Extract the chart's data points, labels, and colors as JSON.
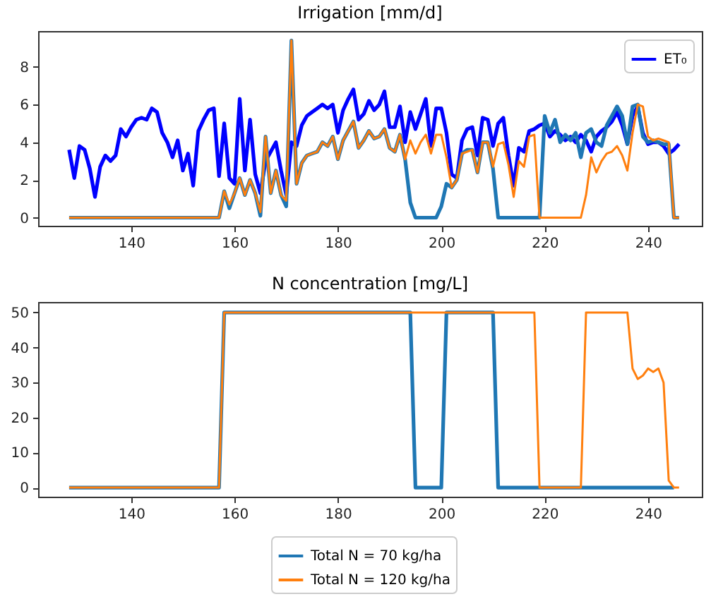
{
  "chart_data": [
    {
      "type": "line",
      "title": "Irrigation [mm/d]",
      "xlim": [
        122,
        250.4
      ],
      "xticks": [
        140,
        160,
        180,
        200,
        220,
        240
      ],
      "ylim": [
        -0.43,
        9.9
      ],
      "yticks": [
        0,
        2,
        4,
        6,
        8
      ],
      "legend": "top right",
      "line_style": "solid",
      "x": [
        128,
        129,
        130,
        131,
        132,
        133,
        134,
        135,
        136,
        137,
        138,
        139,
        140,
        141,
        142,
        143,
        144,
        145,
        146,
        147,
        148,
        149,
        150,
        151,
        152,
        153,
        154,
        155,
        156,
        157,
        158,
        159,
        160,
        161,
        162,
        163,
        164,
        165,
        166,
        167,
        168,
        169,
        170,
        171,
        172,
        173,
        174,
        175,
        176,
        177,
        178,
        179,
        180,
        181,
        182,
        183,
        184,
        185,
        186,
        187,
        188,
        189,
        190,
        191,
        192,
        193,
        194,
        195,
        196,
        197,
        198,
        199,
        200,
        201,
        202,
        203,
        204,
        205,
        206,
        207,
        208,
        209,
        210,
        211,
        212,
        213,
        214,
        215,
        216,
        217,
        218,
        219,
        220,
        221,
        222,
        223,
        224,
        225,
        226,
        227,
        228,
        229,
        230,
        231,
        232,
        233,
        234,
        235,
        236,
        237,
        238,
        239,
        240,
        241,
        242,
        243,
        244,
        245,
        246
      ],
      "series": [
        {
          "name": "ET₀",
          "color": "#0000ff",
          "values": [
            3.6,
            2.1,
            3.8,
            3.6,
            2.6,
            1.1,
            2.7,
            3.3,
            3.0,
            3.3,
            4.7,
            4.3,
            4.8,
            5.2,
            5.3,
            5.2,
            5.8,
            5.6,
            4.5,
            4.0,
            3.2,
            4.1,
            2.5,
            3.4,
            1.7,
            4.6,
            5.2,
            5.7,
            5.8,
            2.2,
            5.0,
            2.1,
            1.8,
            6.3,
            2.5,
            5.2,
            2.3,
            1.3,
            3.0,
            3.5,
            4.0,
            2.5,
            1.2,
            4.0,
            3.8,
            4.9,
            5.4,
            5.6,
            5.8,
            6.0,
            5.8,
            6.0,
            4.5,
            5.7,
            6.3,
            6.8,
            5.2,
            5.5,
            6.2,
            5.7,
            6.0,
            6.7,
            4.8,
            4.8,
            5.9,
            4.0,
            5.6,
            4.7,
            5.5,
            6.3,
            3.8,
            5.8,
            5.8,
            4.5,
            2.3,
            2.1,
            4.1,
            4.7,
            4.8,
            3.3,
            5.3,
            5.2,
            3.8,
            5.0,
            5.3,
            3.3,
            1.7,
            3.7,
            3.5,
            4.6,
            4.7,
            4.9,
            5.0,
            4.3,
            4.6,
            4.4,
            4.1,
            4.3,
            4.0,
            4.4,
            4.1,
            3.5,
            4.3,
            4.6,
            4.8,
            5.1,
            5.6,
            4.9,
            3.9,
            5.4,
            5.9,
            4.5,
            3.9,
            4.0,
            4.0,
            3.8,
            3.4,
            3.6,
            3.9
          ]
        },
        {
          "color": "#1f77b4",
          "values": [
            0,
            0,
            0,
            0,
            0,
            0,
            0,
            0,
            0,
            0,
            0,
            0,
            0,
            0,
            0,
            0,
            0,
            0,
            0,
            0,
            0,
            0,
            0,
            0,
            0,
            0,
            0,
            0,
            0,
            0,
            1.4,
            0.5,
            1.3,
            2.1,
            1.2,
            2.0,
            1.3,
            0.1,
            4.3,
            1.3,
            2.5,
            1.2,
            0.6,
            9.4,
            1.8,
            2.9,
            3.3,
            3.4,
            3.5,
            4.0,
            3.8,
            4.3,
            3.1,
            4.1,
            4.6,
            5.1,
            3.7,
            4.1,
            4.6,
            4.2,
            4.3,
            4.7,
            3.7,
            3.5,
            4.4,
            3.1,
            0.8,
            0,
            0,
            0,
            0,
            0,
            0.6,
            1.8,
            1.6,
            2.0,
            3.4,
            3.6,
            3.6,
            2.4,
            4.0,
            4.0,
            2.6,
            0,
            0,
            0,
            0,
            0,
            0,
            0,
            0,
            0,
            5.4,
            4.5,
            5.2,
            4.0,
            4.4,
            4.1,
            4.5,
            3.2,
            4.5,
            4.7,
            4.0,
            3.8,
            4.9,
            5.4,
            5.9,
            5.4,
            3.9,
            5.9,
            6.0,
            4.3,
            4.0,
            4.1,
            4.0,
            3.9,
            3.9,
            0,
            0
          ]
        },
        {
          "color": "#ff7f0e",
          "values": [
            0,
            0,
            0,
            0,
            0,
            0,
            0,
            0,
            0,
            0,
            0,
            0,
            0,
            0,
            0,
            0,
            0,
            0,
            0,
            0,
            0,
            0,
            0,
            0,
            0,
            0,
            0,
            0,
            0,
            0,
            1.4,
            0.7,
            1.3,
            2.1,
            1.2,
            2.0,
            1.3,
            0.3,
            4.3,
            1.3,
            2.5,
            1.2,
            0.9,
            9.4,
            1.8,
            2.9,
            3.3,
            3.4,
            3.5,
            4.0,
            3.8,
            4.3,
            3.1,
            4.1,
            4.6,
            5.1,
            3.7,
            4.1,
            4.6,
            4.2,
            4.3,
            4.7,
            3.7,
            3.5,
            4.4,
            3.1,
            4.1,
            3.4,
            4.0,
            4.4,
            3.4,
            4.4,
            4.4,
            3.2,
            1.6,
            2.0,
            3.4,
            3.5,
            3.6,
            2.4,
            4.0,
            4.0,
            2.7,
            3.9,
            4.0,
            2.8,
            1.1,
            3.0,
            2.7,
            4.3,
            4.4,
            0,
            0,
            0,
            0,
            0,
            0,
            0,
            0,
            0,
            1.2,
            3.2,
            2.4,
            3.0,
            3.4,
            3.5,
            3.8,
            3.3,
            2.5,
            4.5,
            6.0,
            5.9,
            4.3,
            4.1,
            4.2,
            4.1,
            4.0,
            0,
            0
          ]
        }
      ]
    },
    {
      "type": "line",
      "title": "N concentration [mg/L]",
      "xlim": [
        122,
        250.4
      ],
      "xticks": [
        140,
        160,
        180,
        200,
        220,
        240
      ],
      "ylim": [
        -2.6,
        53
      ],
      "yticks": [
        0,
        10,
        20,
        30,
        40,
        50
      ],
      "legend": "bottom",
      "line_style": "solid",
      "series": [
        {
          "name": "Total N = 70 kg/ha",
          "color": "#1f77b4",
          "x": [
            128,
            157,
            158,
            194,
            195,
            200,
            201,
            210,
            211,
            245
          ],
          "values": [
            0,
            0,
            50,
            50,
            0,
            0,
            50,
            50,
            0,
            0
          ]
        },
        {
          "name": "Total N = 120 kg/ha",
          "color": "#ff7f0e",
          "x": [
            128,
            157,
            158,
            218,
            219,
            227,
            228,
            236,
            237,
            238,
            239,
            240,
            241,
            242,
            243,
            244,
            245,
            246
          ],
          "values": [
            0,
            0,
            50,
            50,
            0,
            0,
            50,
            50,
            34,
            31,
            32,
            34,
            33,
            34,
            30,
            2,
            0,
            0
          ]
        }
      ]
    }
  ]
}
